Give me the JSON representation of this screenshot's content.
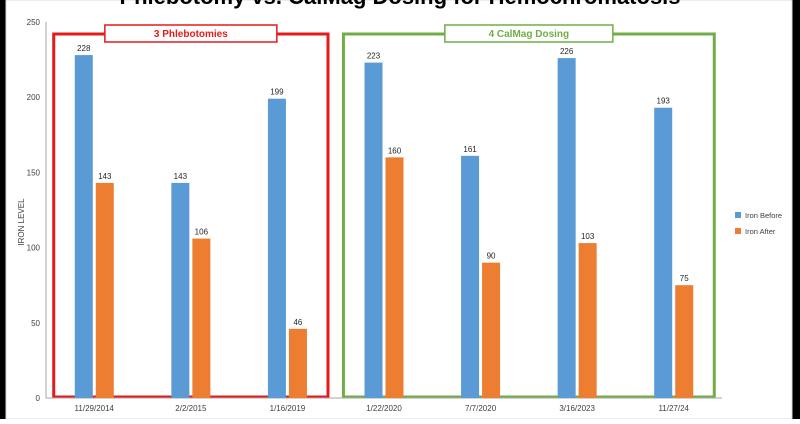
{
  "chart_data": {
    "type": "bar",
    "title": "Phlebotomy vs. CalMag Dosing for Hemochromatosis",
    "ylabel": "IRON LEVEL",
    "ylim": [
      0,
      250
    ],
    "yticks": [
      0,
      50,
      100,
      150,
      200,
      250
    ],
    "categories": [
      "11/29/2014",
      "2/2/2015",
      "1/16/2019",
      "1/22/2020",
      "7/7/2020",
      "3/16/2023",
      "11/27/24"
    ],
    "series": [
      {
        "name": "Iron Before",
        "color": "#5b9bd5",
        "values": [
          228,
          143,
          199,
          223,
          161,
          226,
          193
        ]
      },
      {
        "name": "Iron After",
        "color": "#ed7d31",
        "values": [
          143,
          106,
          46,
          160,
          90,
          103,
          75
        ]
      }
    ],
    "legend_position": "right",
    "grid": false,
    "annotations": [
      {
        "label": "3 Phlebotomies",
        "border_color": "#e31b1b",
        "text_color": "#e31b1b",
        "categories": [
          0,
          1,
          2
        ]
      },
      {
        "label": "4 CalMag Dosing",
        "border_color": "#70ad47",
        "text_color": "#70ad47",
        "categories": [
          3,
          4,
          5,
          6
        ]
      }
    ]
  }
}
